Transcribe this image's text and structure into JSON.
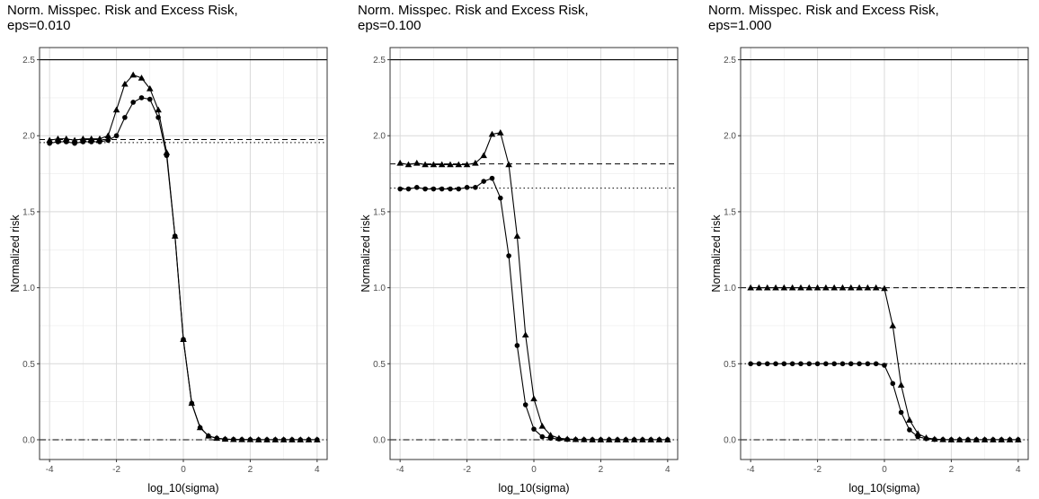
{
  "chart_data": [
    {
      "type": "line",
      "title": "Norm. Misspec. Risk and Excess Risk,",
      "subtitle": "eps=0.010",
      "xlabel": "log_10(sigma)",
      "ylabel": "Normalized risk",
      "xlim": [
        -4.3,
        4.3
      ],
      "ylim": [
        -0.13,
        2.58
      ],
      "xticks": [
        -4,
        -2,
        0,
        2,
        4
      ],
      "xtick_labels": [
        "-4",
        "-2",
        "0",
        "2",
        "4"
      ],
      "yticks": [
        0.0,
        0.5,
        1.0,
        1.5,
        2.0,
        2.5
      ],
      "ytick_labels": [
        "0.0",
        "0.5",
        "1.0",
        "1.5",
        "2.0",
        "2.5"
      ],
      "grid": true,
      "x": [
        -4.0,
        -3.75,
        -3.5,
        -3.25,
        -3.0,
        -2.75,
        -2.5,
        -2.25,
        -2.0,
        -1.75,
        -1.5,
        -1.25,
        -1.0,
        -0.75,
        -0.5,
        -0.25,
        0.0,
        0.25,
        0.5,
        0.75,
        1.0,
        1.25,
        1.5,
        1.75,
        2.0,
        2.25,
        2.5,
        2.75,
        3.0,
        3.25,
        3.5,
        3.75,
        4.0
      ],
      "series": [
        {
          "marker": "triangle",
          "values": [
            1.97,
            1.98,
            1.98,
            1.97,
            1.98,
            1.98,
            1.98,
            2.0,
            2.17,
            2.34,
            2.4,
            2.38,
            2.31,
            2.17,
            1.89,
            1.34,
            0.66,
            0.24,
            0.08,
            0.025,
            0.01,
            0.004,
            0.002,
            0.001,
            0.001,
            0.0,
            0.0,
            0.0,
            0.0,
            0.0,
            0.0,
            0.0,
            0.0
          ]
        },
        {
          "marker": "circle",
          "values": [
            1.95,
            1.96,
            1.96,
            1.95,
            1.96,
            1.96,
            1.96,
            1.97,
            2.0,
            2.12,
            2.22,
            2.25,
            2.24,
            2.12,
            1.87,
            1.34,
            0.66,
            0.24,
            0.08,
            0.025,
            0.01,
            0.004,
            0.002,
            0.001,
            0.001,
            0.0,
            0.0,
            0.0,
            0.0,
            0.0,
            0.0,
            0.0,
            0.0
          ]
        }
      ],
      "hlines": [
        {
          "y": 2.5,
          "style": "solid"
        },
        {
          "y": 1.975,
          "style": "dashed"
        },
        {
          "y": 1.955,
          "style": "dotted"
        },
        {
          "y": 0.0,
          "style": "dashdot"
        }
      ]
    },
    {
      "type": "line",
      "title": "Norm. Misspec. Risk and Excess Risk,",
      "subtitle": "eps=0.100",
      "xlabel": "log_10(sigma)",
      "ylabel": "Normalized risk",
      "xlim": [
        -4.3,
        4.3
      ],
      "ylim": [
        -0.13,
        2.58
      ],
      "xticks": [
        -4,
        -2,
        0,
        2,
        4
      ],
      "xtick_labels": [
        "-4",
        "-2",
        "0",
        "2",
        "4"
      ],
      "yticks": [
        0.0,
        0.5,
        1.0,
        1.5,
        2.0,
        2.5
      ],
      "ytick_labels": [
        "0.0",
        "0.5",
        "1.0",
        "1.5",
        "2.0",
        "2.5"
      ],
      "grid": true,
      "x": [
        -4.0,
        -3.75,
        -3.5,
        -3.25,
        -3.0,
        -2.75,
        -2.5,
        -2.25,
        -2.0,
        -1.75,
        -1.5,
        -1.25,
        -1.0,
        -0.75,
        -0.5,
        -0.25,
        0.0,
        0.25,
        0.5,
        0.75,
        1.0,
        1.25,
        1.5,
        1.75,
        2.0,
        2.25,
        2.5,
        2.75,
        3.0,
        3.25,
        3.5,
        3.75,
        4.0
      ],
      "series": [
        {
          "marker": "triangle",
          "values": [
            1.82,
            1.81,
            1.82,
            1.81,
            1.81,
            1.81,
            1.81,
            1.81,
            1.81,
            1.82,
            1.87,
            2.01,
            2.02,
            1.81,
            1.34,
            0.69,
            0.27,
            0.09,
            0.03,
            0.01,
            0.005,
            0.002,
            0.001,
            0.0,
            0.0,
            0.0,
            0.0,
            0.0,
            0.0,
            0.0,
            0.0,
            0.0,
            0.0
          ]
        },
        {
          "marker": "circle",
          "values": [
            1.65,
            1.65,
            1.66,
            1.65,
            1.65,
            1.65,
            1.65,
            1.65,
            1.66,
            1.66,
            1.7,
            1.72,
            1.59,
            1.21,
            0.62,
            0.23,
            0.07,
            0.02,
            0.01,
            0.005,
            0.002,
            0.001,
            0.0,
            0.0,
            0.0,
            0.0,
            0.0,
            0.0,
            0.0,
            0.0,
            0.0,
            0.0,
            0.0
          ]
        }
      ],
      "hlines": [
        {
          "y": 2.5,
          "style": "solid"
        },
        {
          "y": 1.815,
          "style": "dashed"
        },
        {
          "y": 1.655,
          "style": "dotted"
        },
        {
          "y": 0.0,
          "style": "dashdot"
        }
      ]
    },
    {
      "type": "line",
      "title": "Norm. Misspec. Risk and Excess Risk,",
      "subtitle": "eps=1.000",
      "xlabel": "log_10(sigma)",
      "ylabel": "Normalized risk",
      "xlim": [
        -4.3,
        4.3
      ],
      "ylim": [
        -0.13,
        2.58
      ],
      "xticks": [
        -4,
        -2,
        0,
        2,
        4
      ],
      "xtick_labels": [
        "-4",
        "-2",
        "0",
        "2",
        "4"
      ],
      "yticks": [
        0.0,
        0.5,
        1.0,
        1.5,
        2.0,
        2.5
      ],
      "ytick_labels": [
        "0.0",
        "0.5",
        "1.0",
        "1.5",
        "2.0",
        "2.5"
      ],
      "grid": true,
      "x": [
        -4.0,
        -3.75,
        -3.5,
        -3.25,
        -3.0,
        -2.75,
        -2.5,
        -2.25,
        -2.0,
        -1.75,
        -1.5,
        -1.25,
        -1.0,
        -0.75,
        -0.5,
        -0.25,
        0.0,
        0.25,
        0.5,
        0.75,
        1.0,
        1.25,
        1.5,
        1.75,
        2.0,
        2.25,
        2.5,
        2.75,
        3.0,
        3.25,
        3.5,
        3.75,
        4.0
      ],
      "series": [
        {
          "marker": "triangle",
          "values": [
            1.0,
            1.0,
            1.0,
            1.0,
            1.0,
            1.0,
            1.0,
            1.0,
            1.0,
            1.0,
            1.0,
            1.0,
            1.0,
            1.0,
            1.0,
            1.0,
            0.995,
            0.75,
            0.36,
            0.13,
            0.04,
            0.013,
            0.004,
            0.001,
            0.0,
            0.0,
            0.0,
            0.0,
            0.0,
            0.0,
            0.0,
            0.0,
            0.0
          ]
        },
        {
          "marker": "circle",
          "values": [
            0.5,
            0.5,
            0.5,
            0.5,
            0.5,
            0.5,
            0.5,
            0.5,
            0.5,
            0.5,
            0.5,
            0.5,
            0.5,
            0.5,
            0.5,
            0.5,
            0.49,
            0.37,
            0.18,
            0.065,
            0.02,
            0.007,
            0.002,
            0.001,
            0.0,
            0.0,
            0.0,
            0.0,
            0.0,
            0.0,
            0.0,
            0.0,
            0.0
          ]
        }
      ],
      "hlines": [
        {
          "y": 2.5,
          "style": "solid"
        },
        {
          "y": 1.0,
          "style": "dashed"
        },
        {
          "y": 0.5,
          "style": "dotted"
        },
        {
          "y": 0.0,
          "style": "dashdot"
        }
      ]
    }
  ]
}
